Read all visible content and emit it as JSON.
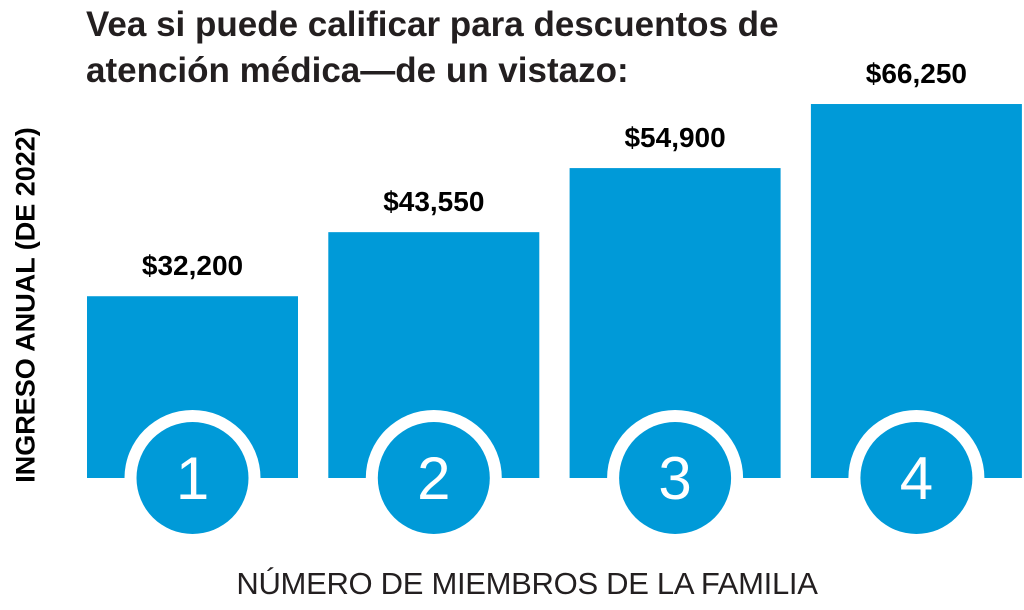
{
  "chart_data": {
    "type": "bar",
    "title": "Vea si puede calificar para descuentos de atención médica—de un vistazo:",
    "xlabel": "NÚMERO DE MIEMBROS DE LA FAMILIA",
    "ylabel": "INGRESO ANUAL (DE 2022)",
    "categories": [
      "1",
      "2",
      "3",
      "4"
    ],
    "values": [
      32200,
      43550,
      54900,
      66250
    ],
    "value_labels": [
      "$32,200",
      "$43,550",
      "$54,900",
      "$66,250"
    ],
    "grid": false,
    "legend": "none"
  },
  "colors": {
    "bar": "#009ad8",
    "ring": "#ffffff",
    "text": "#231f20"
  }
}
